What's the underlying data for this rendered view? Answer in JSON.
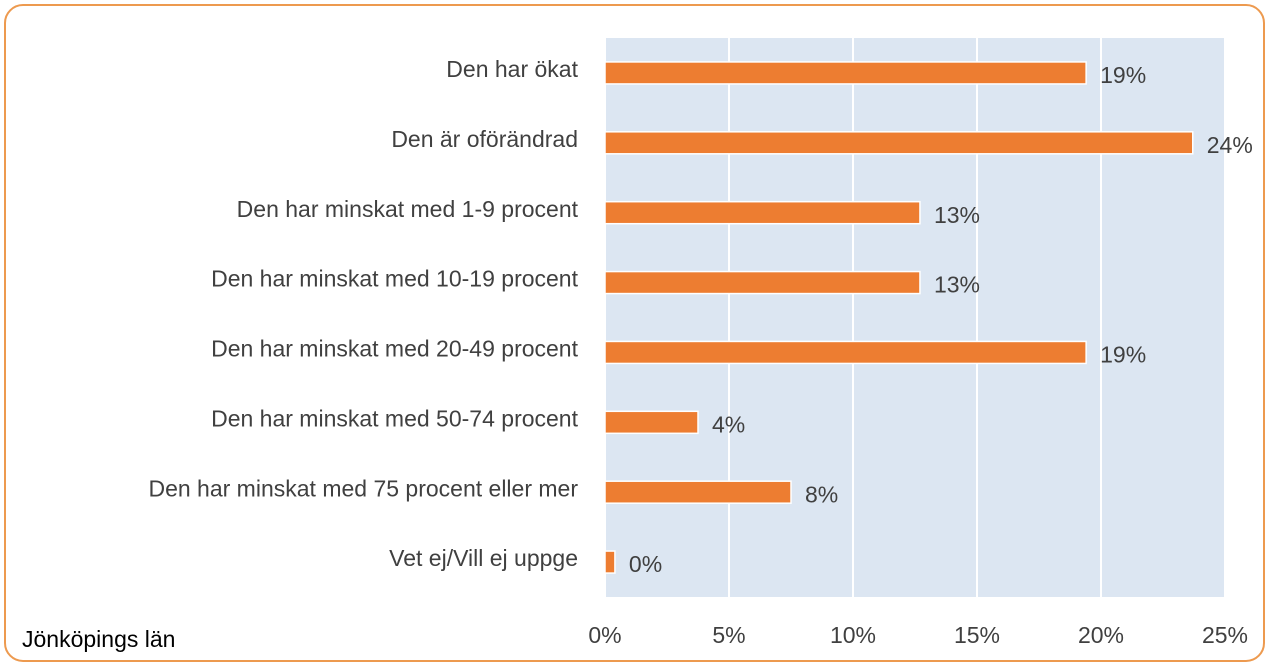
{
  "chart_data": {
    "type": "bar",
    "orientation": "horizontal",
    "categories": [
      "Den har ökat",
      "Den är oförändrad",
      "Den har minskat med 1-9 procent",
      "Den har minskat med 10-19 procent",
      "Den har minskat med 20-49 procent",
      "Den har minskat med 50-74 procent",
      "Den har minskat med 75 procent eller mer",
      "Vet ej/Vill ej uppge"
    ],
    "values": [
      19.4,
      23.7,
      12.7,
      12.7,
      19.4,
      3.75,
      7.5,
      0.4
    ],
    "value_labels": [
      "19%",
      "24%",
      "13%",
      "13%",
      "19%",
      "4%",
      "8%",
      "0%"
    ],
    "color": "#ed7d31",
    "xlim": [
      0,
      25
    ],
    "xticks": [
      {
        "value": 0,
        "label": "0%"
      },
      {
        "value": 5,
        "label": "5%"
      },
      {
        "value": 10,
        "label": "10%"
      },
      {
        "value": 15,
        "label": "15%"
      },
      {
        "value": 20,
        "label": "20%"
      },
      {
        "value": 25,
        "label": "25%"
      }
    ],
    "grid": true,
    "footnote": "Jönköpings län"
  }
}
